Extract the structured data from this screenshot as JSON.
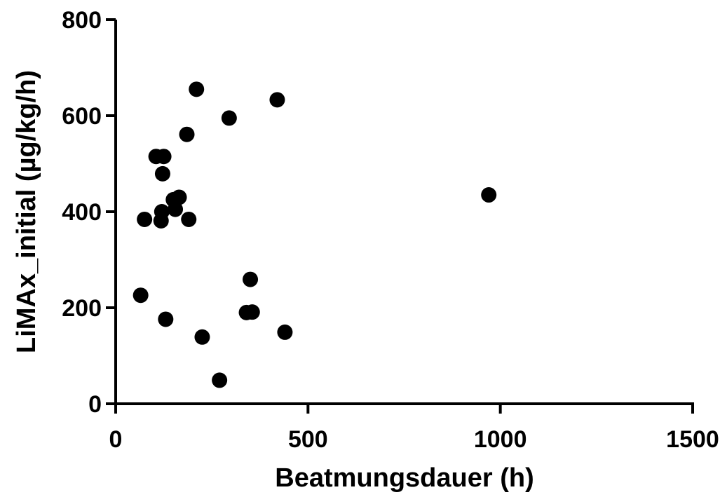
{
  "chart_data": {
    "type": "scatter",
    "title": "",
    "xlabel": "Beatmungsdauer (h)",
    "ylabel": "LiMAx_initial (µg/kg/h)",
    "xlim": [
      0,
      1500
    ],
    "ylim": [
      0,
      800
    ],
    "x_ticks": [
      "0",
      "500",
      "1000",
      "1500"
    ],
    "y_ticks": [
      "0",
      "200",
      "400",
      "600",
      "800"
    ],
    "grid": false,
    "legend": "none",
    "marker_color": "#000000",
    "points": [
      {
        "x": 210,
        "y": 655
      },
      {
        "x": 420,
        "y": 633
      },
      {
        "x": 295,
        "y": 595
      },
      {
        "x": 185,
        "y": 561
      },
      {
        "x": 105,
        "y": 515
      },
      {
        "x": 125,
        "y": 515
      },
      {
        "x": 122,
        "y": 479
      },
      {
        "x": 970,
        "y": 435
      },
      {
        "x": 165,
        "y": 430
      },
      {
        "x": 150,
        "y": 425
      },
      {
        "x": 155,
        "y": 405
      },
      {
        "x": 120,
        "y": 400
      },
      {
        "x": 75,
        "y": 384
      },
      {
        "x": 190,
        "y": 384
      },
      {
        "x": 118,
        "y": 381
      },
      {
        "x": 350,
        "y": 259
      },
      {
        "x": 65,
        "y": 226
      },
      {
        "x": 340,
        "y": 190
      },
      {
        "x": 355,
        "y": 191
      },
      {
        "x": 130,
        "y": 176
      },
      {
        "x": 440,
        "y": 149
      },
      {
        "x": 225,
        "y": 139
      },
      {
        "x": 270,
        "y": 49
      }
    ]
  }
}
